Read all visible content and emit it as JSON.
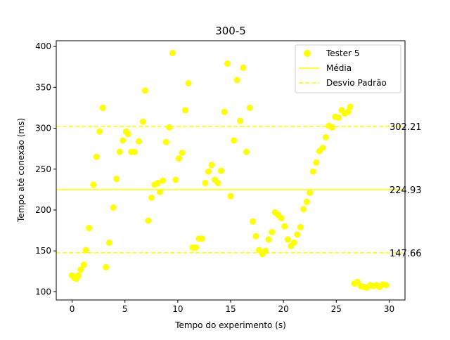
{
  "chart_data": {
    "type": "scatter",
    "title": "300-5",
    "xlabel": "Tempo do experimento (s)",
    "ylabel": "Tempo até conexão (ms)",
    "xlim": [
      -1.5,
      31.5
    ],
    "ylim": [
      90,
      407
    ],
    "xticks": [
      0,
      5,
      10,
      15,
      20,
      25,
      30
    ],
    "yticks": [
      100,
      150,
      200,
      250,
      300,
      350,
      400
    ],
    "grid": false,
    "legend_position": "top-right",
    "colors": {
      "series": "#ffff00",
      "mean_line": "#ffff00",
      "std_line": "#ffff00"
    },
    "series": [
      {
        "name": "Tester 5",
        "points": [
          [
            0.0,
            120
          ],
          [
            0.2,
            117
          ],
          [
            0.4,
            116
          ],
          [
            0.6,
            120
          ],
          [
            0.8,
            127
          ],
          [
            1.1,
            133
          ],
          [
            1.3,
            151
          ],
          [
            1.6,
            178
          ],
          [
            2.0,
            231
          ],
          [
            2.3,
            265
          ],
          [
            2.6,
            296
          ],
          [
            2.9,
            325
          ],
          [
            3.2,
            130
          ],
          [
            3.5,
            160
          ],
          [
            3.9,
            203
          ],
          [
            4.2,
            238
          ],
          [
            4.5,
            271
          ],
          [
            4.8,
            285
          ],
          [
            5.1,
            296
          ],
          [
            5.3,
            293
          ],
          [
            5.6,
            271
          ],
          [
            5.9,
            271
          ],
          [
            6.3,
            284
          ],
          [
            6.7,
            308
          ],
          [
            6.9,
            346
          ],
          [
            7.2,
            187
          ],
          [
            7.5,
            215
          ],
          [
            7.8,
            231
          ],
          [
            8.1,
            233
          ],
          [
            8.3,
            222
          ],
          [
            8.6,
            236
          ],
          [
            8.9,
            283
          ],
          [
            9.2,
            301
          ],
          [
            9.5,
            392
          ],
          [
            9.8,
            237
          ],
          [
            10.1,
            263
          ],
          [
            10.4,
            270
          ],
          [
            10.7,
            322
          ],
          [
            11.0,
            355
          ],
          [
            11.4,
            154
          ],
          [
            11.7,
            154
          ],
          [
            12.0,
            165
          ],
          [
            12.3,
            165
          ],
          [
            12.6,
            233
          ],
          [
            12.9,
            247
          ],
          [
            13.2,
            255
          ],
          [
            13.5,
            237
          ],
          [
            13.8,
            233
          ],
          [
            14.1,
            248
          ],
          [
            14.4,
            320
          ],
          [
            14.7,
            379
          ],
          [
            15.0,
            217
          ],
          [
            15.3,
            285
          ],
          [
            15.6,
            359
          ],
          [
            15.9,
            309
          ],
          [
            16.2,
            374
          ],
          [
            16.5,
            271
          ],
          [
            16.8,
            325
          ],
          [
            17.1,
            186
          ],
          [
            17.4,
            168
          ],
          [
            17.7,
            151
          ],
          [
            18.0,
            146
          ],
          [
            18.3,
            150
          ],
          [
            18.6,
            164
          ],
          [
            18.9,
            173
          ],
          [
            19.2,
            197
          ],
          [
            19.5,
            194
          ],
          [
            19.8,
            190
          ],
          [
            20.1,
            180
          ],
          [
            20.4,
            164
          ],
          [
            20.7,
            156
          ],
          [
            21.0,
            160
          ],
          [
            21.3,
            170
          ],
          [
            21.6,
            179
          ],
          [
            21.9,
            201
          ],
          [
            22.2,
            210
          ],
          [
            22.5,
            221
          ],
          [
            22.8,
            247
          ],
          [
            23.1,
            258
          ],
          [
            23.4,
            272
          ],
          [
            23.7,
            276
          ],
          [
            24.0,
            289
          ],
          [
            24.3,
            303
          ],
          [
            24.6,
            301
          ],
          [
            24.9,
            314
          ],
          [
            25.2,
            313
          ],
          [
            25.5,
            322
          ],
          [
            25.8,
            318
          ],
          [
            26.1,
            320
          ],
          [
            26.3,
            326
          ],
          [
            26.7,
            110
          ],
          [
            27.0,
            112
          ],
          [
            27.3,
            107
          ],
          [
            27.6,
            106
          ],
          [
            27.9,
            105
          ],
          [
            28.2,
            108
          ],
          [
            28.5,
            107
          ],
          [
            28.8,
            108
          ],
          [
            29.1,
            106
          ],
          [
            29.4,
            109
          ],
          [
            29.7,
            108
          ]
        ]
      }
    ],
    "mean": 224.93,
    "std_lines": [
      302.21,
      147.66
    ],
    "line_labels": {
      "mean": "224.93",
      "upper": "302.21",
      "lower": "147.66"
    },
    "legend": [
      {
        "label": "Tester 5",
        "kind": "marker"
      },
      {
        "label": "Média",
        "kind": "solid-line"
      },
      {
        "label": "Desvio Padrão",
        "kind": "dashed-line"
      }
    ]
  }
}
